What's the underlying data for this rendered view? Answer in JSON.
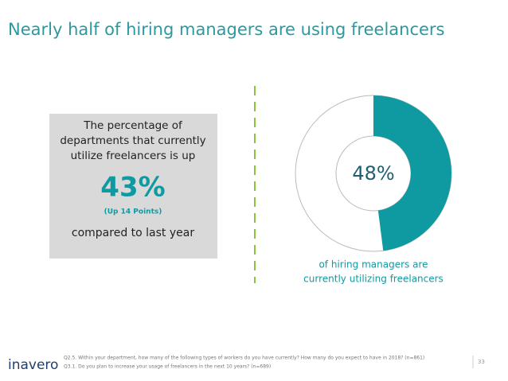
{
  "title": "Nearly half of hiring managers are using freelancers",
  "callout": {
    "lines": [
      "The percentage of",
      "departments that currently",
      "utilize freelancers is up"
    ],
    "stat": "43%",
    "change": "(Up 14 Points)",
    "footer": "compared to last year"
  },
  "chart_data": {
    "type": "donut",
    "values": [
      48
    ],
    "value_labels": [
      "48%"
    ],
    "color": "#0f9aa2",
    "ylim": [
      0,
      100
    ],
    "caption": [
      "of hiring managers are",
      "currently utilizing freelancers"
    ]
  },
  "footnotes": [
    "Q2.5. Within your department, how many of the following types of workers do you have currently? How many do you expect to have in 2018? (n=861)",
    "Q3.1. Do you plan to increase your usage of freelancers in the next 10 years? (n=689)"
  ],
  "logo": "inavero",
  "page_number": "33"
}
